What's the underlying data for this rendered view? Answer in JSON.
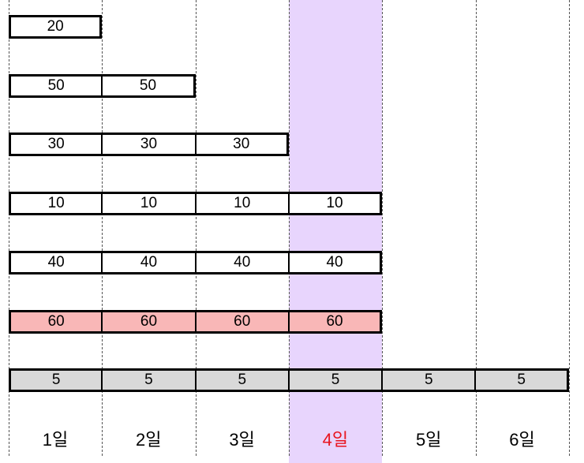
{
  "colors": {
    "highlight_column": "#e8d5fd",
    "highlight_row": "#f9b7b7",
    "base_row": "#d9d9d9",
    "cell_default": "#ffffff",
    "highlight_label": "#e8141e"
  },
  "highlight_column_index": 3,
  "days": [
    "1일",
    "2일",
    "3일",
    "4일",
    "5일",
    "6일"
  ],
  "rows": [
    {
      "value": "20",
      "span": 1,
      "style": "default"
    },
    {
      "value": "50",
      "span": 2,
      "style": "default"
    },
    {
      "value": "30",
      "span": 3,
      "style": "default"
    },
    {
      "value": "10",
      "span": 4,
      "style": "default"
    },
    {
      "value": "40",
      "span": 4,
      "style": "default"
    },
    {
      "value": "60",
      "span": 4,
      "style": "highlight"
    },
    {
      "value": "5",
      "span": 6,
      "style": "base"
    }
  ]
}
